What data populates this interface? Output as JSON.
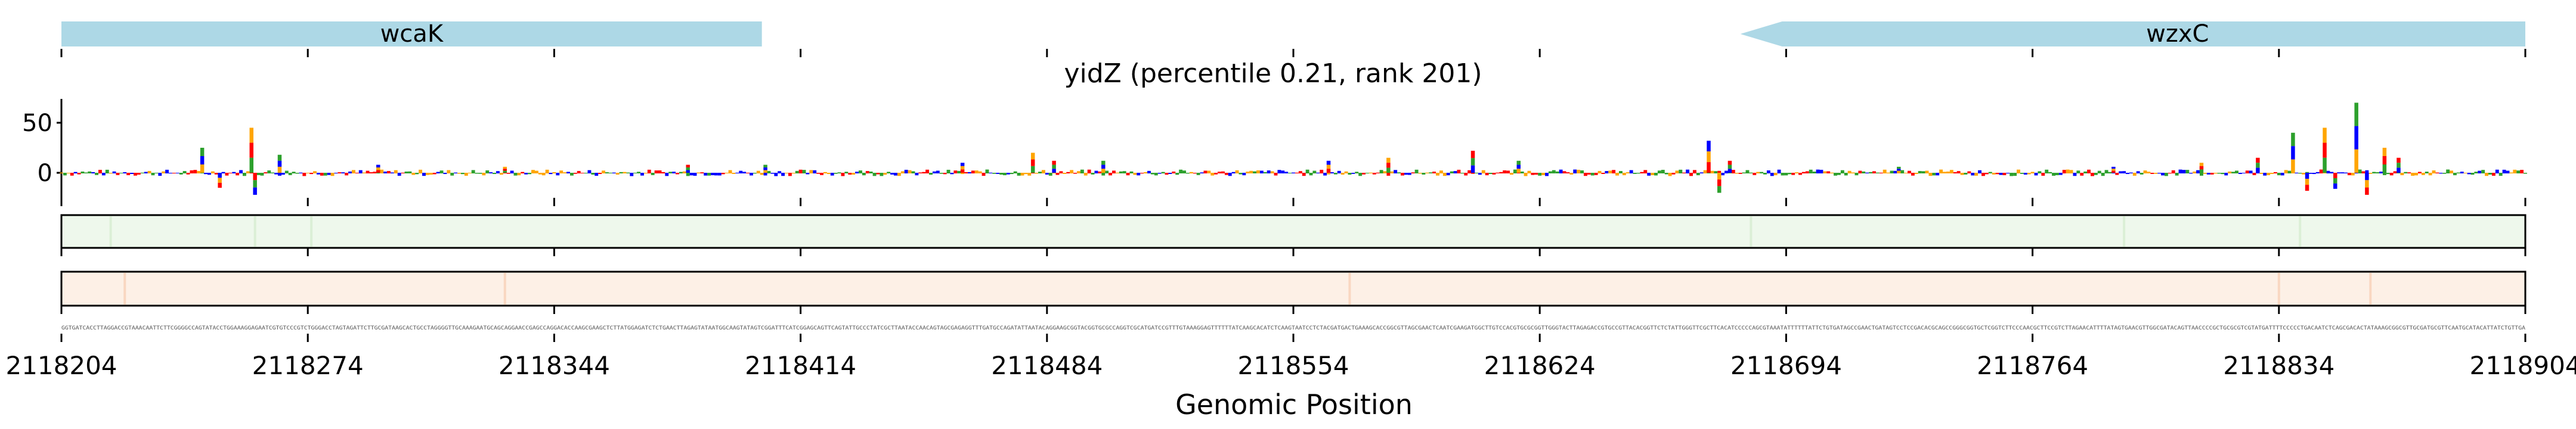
{
  "chart_data": {
    "type": "sequence-logo-track",
    "title": "yidZ (percentile 0.21, rank 201)",
    "xlabel": "Genomic Position",
    "xlim": [
      2118204,
      2118904
    ],
    "xticks": [
      2118204,
      2118274,
      2118344,
      2118414,
      2118484,
      2118554,
      2118624,
      2118694,
      2118764,
      2118834,
      2118904
    ],
    "ylim": [
      -30,
      70
    ],
    "yticks": [
      0,
      50
    ],
    "genes": [
      {
        "name": "wcaK",
        "start": 2118204,
        "end": 2118403,
        "strand": "+",
        "color": "#add8e6"
      },
      {
        "name": "wzxC",
        "start": 2118681,
        "end": 2118904,
        "strand": "-",
        "color": "#add8e6"
      }
    ],
    "base_colors": {
      "A": "#2ca02c",
      "C": "#0000ff",
      "G": "#ffa500",
      "T": "#ff0000"
    },
    "attribution_peaks": [
      {
        "x": 2118244,
        "y": 25
      },
      {
        "x": 2118249,
        "y": -15
      },
      {
        "x": 2118258,
        "y": 45
      },
      {
        "x": 2118259,
        "y": -22
      },
      {
        "x": 2118266,
        "y": 18
      },
      {
        "x": 2118294,
        "y": 8
      },
      {
        "x": 2118330,
        "y": 6
      },
      {
        "x": 2118382,
        "y": 8
      },
      {
        "x": 2118404,
        "y": 8
      },
      {
        "x": 2118460,
        "y": 10
      },
      {
        "x": 2118480,
        "y": 20
      },
      {
        "x": 2118486,
        "y": 12
      },
      {
        "x": 2118500,
        "y": 12
      },
      {
        "x": 2118564,
        "y": 12
      },
      {
        "x": 2118581,
        "y": 15
      },
      {
        "x": 2118605,
        "y": 22
      },
      {
        "x": 2118618,
        "y": 12
      },
      {
        "x": 2118672,
        "y": 32
      },
      {
        "x": 2118675,
        "y": -20
      },
      {
        "x": 2118678,
        "y": 12
      },
      {
        "x": 2118726,
        "y": 6
      },
      {
        "x": 2118787,
        "y": 6
      },
      {
        "x": 2118812,
        "y": 10
      },
      {
        "x": 2118828,
        "y": 15
      },
      {
        "x": 2118838,
        "y": 40
      },
      {
        "x": 2118842,
        "y": -18
      },
      {
        "x": 2118847,
        "y": 45
      },
      {
        "x": 2118850,
        "y": -16
      },
      {
        "x": 2118856,
        "y": 70
      },
      {
        "x": 2118859,
        "y": -22
      },
      {
        "x": 2118864,
        "y": 25
      },
      {
        "x": 2118868,
        "y": 15
      }
    ],
    "heatmap_tracks": [
      {
        "name": "track1",
        "color": "#e8f5e4",
        "highlights": [
          2118218,
          2118259,
          2118275,
          2118684,
          2118790,
          2118840
        ]
      },
      {
        "name": "track2",
        "color": "#fde6d6",
        "highlights": [
          2118222,
          2118330,
          2118570,
          2118834,
          2118860
        ]
      }
    ]
  }
}
